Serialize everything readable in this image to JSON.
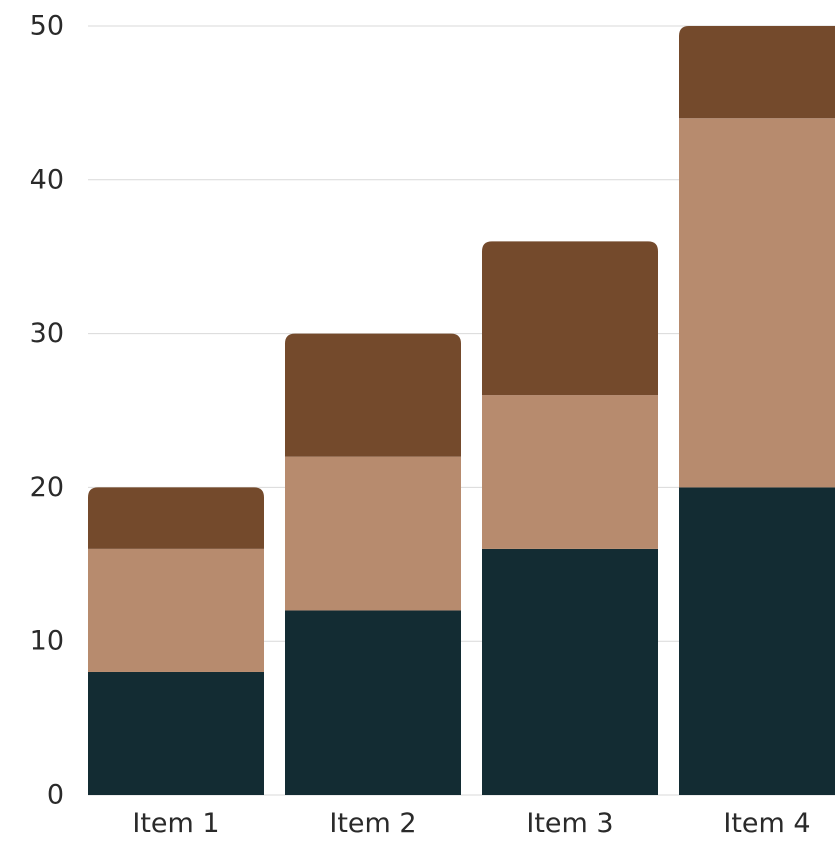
{
  "chart_data": {
    "type": "bar",
    "stacked": true,
    "categories": [
      "Item 1",
      "Item 2",
      "Item 3",
      "Item 4"
    ],
    "series": [
      {
        "values": [
          8,
          12,
          16,
          20
        ],
        "color": "#132c33"
      },
      {
        "values": [
          8,
          10,
          10,
          24
        ],
        "color": "#b78b6e"
      },
      {
        "values": [
          4,
          8,
          10,
          6
        ],
        "color": "#744a2c"
      }
    ],
    "ylim": [
      0,
      50
    ],
    "yticks": [
      "0",
      "10",
      "20",
      "30",
      "40",
      "50"
    ],
    "grid": true,
    "legend": "none",
    "gridColor": "#d9d9d9"
  }
}
